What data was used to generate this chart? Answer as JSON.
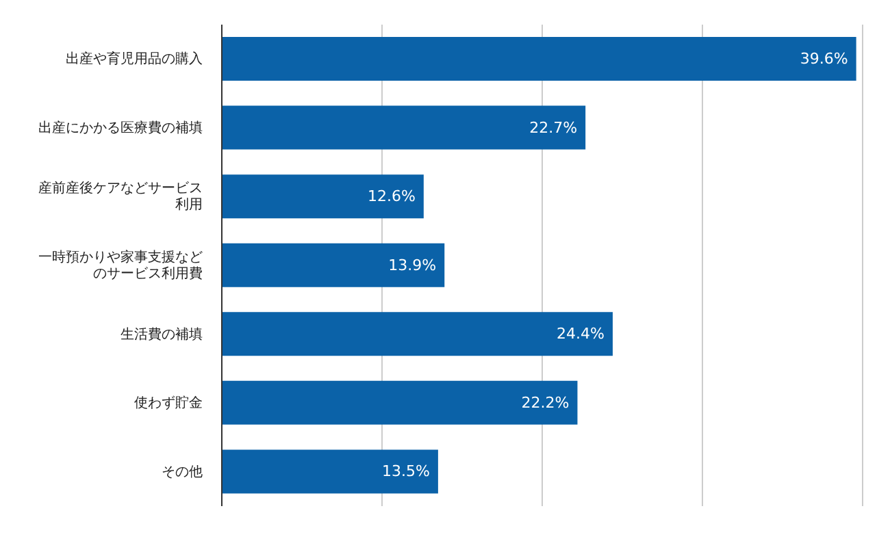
{
  "chart_data": {
    "type": "bar",
    "orientation": "horizontal",
    "categories": [
      "出産や育児用品の購入",
      "出産にかかる医療費の補填",
      "産前産後ケアなどサービス利用",
      "一時預かりや家事支援などのサービス利用費",
      "生活費の補填",
      "使わず貯金",
      "その他"
    ],
    "values": [
      39.6,
      22.7,
      12.6,
      13.9,
      24.4,
      22.2,
      13.5
    ],
    "color": "#0b62a8",
    "xlim": [
      0,
      40
    ],
    "xticks": [
      {
        "value": 0,
        "label": null
      },
      {
        "value": 10,
        "label": null
      },
      {
        "value": 20,
        "label": null
      },
      {
        "value": 30,
        "label": null
      },
      {
        "value": 40,
        "label": null
      }
    ],
    "value_labels": [
      "39.6%",
      "22.7%",
      "12.6%",
      "13.9%",
      "24.4%",
      "22.2%",
      "13.5%"
    ],
    "grid": "x",
    "tick_labels": "y"
  }
}
